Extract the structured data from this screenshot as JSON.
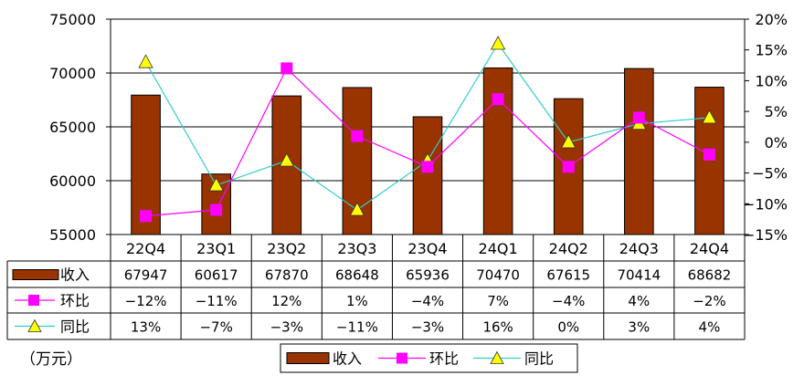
{
  "chart_data": {
    "type": "bar",
    "categories": [
      "22Q4",
      "23Q1",
      "23Q2",
      "23Q3",
      "23Q4",
      "24Q1",
      "24Q2",
      "24Q3",
      "24Q4"
    ],
    "series": [
      {
        "name": "收入",
        "kind": "bar",
        "axis": "left",
        "color": "#993300",
        "values": [
          67947,
          60617,
          67870,
          68648,
          65936,
          70470,
          67615,
          70414,
          68682
        ],
        "labels": [
          "67947",
          "60617",
          "67870",
          "68648",
          "65936",
          "70470",
          "67615",
          "70414",
          "68682"
        ]
      },
      {
        "name": "环比",
        "kind": "line",
        "axis": "right",
        "color": "#ff00ff",
        "marker": "square",
        "values": [
          -12,
          -11,
          12,
          1,
          -4,
          7,
          -4,
          4,
          -2
        ],
        "labels": [
          "−12%",
          "−11%",
          "12%",
          "1%",
          "−4%",
          "7%",
          "−4%",
          "4%",
          "−2%"
        ]
      },
      {
        "name": "同比",
        "kind": "line",
        "axis": "right",
        "color": "#33cccc",
        "marker": "triangle",
        "marker_fill": "#ffff00",
        "values": [
          13,
          -7,
          -3,
          -11,
          -3,
          16,
          0,
          3,
          4
        ],
        "labels": [
          "13%",
          "−7%",
          "−3%",
          "−11%",
          "−3%",
          "16%",
          "0%",
          "3%",
          "4%"
        ]
      }
    ],
    "y_left": {
      "ylim": [
        55000,
        75000
      ],
      "ticks": [
        55000,
        60000,
        65000,
        70000,
        75000
      ],
      "tick_labels": [
        "55000",
        "60000",
        "65000",
        "70000",
        "75000"
      ]
    },
    "y_right": {
      "ylim": [
        -15,
        20
      ],
      "ticks": [
        -15,
        -10,
        -5,
        0,
        5,
        10,
        15,
        20
      ],
      "tick_labels": [
        "−15%",
        "−10%",
        "−5%",
        "0%",
        "5%",
        "10%",
        "15%",
        "20%"
      ]
    },
    "grid": true,
    "legend_position": "bottom",
    "data_table": true,
    "unit_label": "（万元）"
  }
}
